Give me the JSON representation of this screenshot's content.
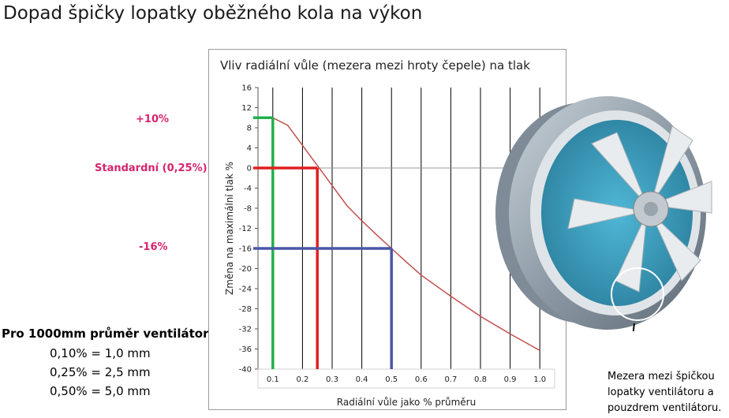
{
  "page_title": "Dopad špičky lopatky oběžného kola na výkon",
  "side_labels": {
    "plus": "+10%",
    "standard": "Standardní (0,25%)",
    "minus": "-16%"
  },
  "note": {
    "heading": "Pro 1000mm průměr ventilátor",
    "lines": [
      "0,10% = 1,0 mm",
      "0,25% = 2,5 mm",
      "0,50% = 5,0 mm"
    ]
  },
  "caption_lines": [
    "Mezera mezi špičkou",
    "lopatky ventilátoru a",
    "pouzdrem ventilátoru."
  ],
  "colors": {
    "pink": "#d6246e",
    "green": "#22b04b",
    "red": "#e02020",
    "blue": "#4a57a8",
    "curve": "#c0504d"
  },
  "chart_data": {
    "type": "line",
    "title": "Vliv radiální vůle (mezera mezi hroty čepele) na tlak",
    "xlabel": "Radiální vůle jako % průměru",
    "ylabel": "Změna na maximální tlak %",
    "xlim": [
      0.05,
      1.05
    ],
    "ylim": [
      -40,
      16
    ],
    "x_ticks": [
      "0.1",
      "0.2",
      "0.3",
      "0.4",
      "0.5",
      "0.6",
      "0.7",
      "0.8",
      "0.9",
      "1.0"
    ],
    "y_ticks": [
      "16",
      "12",
      "8",
      "4",
      "0",
      "-4",
      "-8",
      "-12",
      "-16",
      "-20",
      "-24",
      "-28",
      "-32",
      "-36",
      "-40"
    ],
    "grid": "vertical",
    "series": [
      {
        "x": [
          0.1,
          0.15,
          0.2,
          0.25,
          0.3,
          0.35,
          0.4,
          0.45,
          0.5,
          0.55,
          0.6,
          0.7,
          0.8,
          0.9,
          1.0
        ],
        "y": [
          10,
          8.5,
          4.5,
          0.5,
          -3.5,
          -7.5,
          -10.5,
          -13.3,
          -16,
          -18.7,
          -21.3,
          -25.5,
          -29.5,
          -33,
          -36.3
        ]
      }
    ],
    "markers": [
      {
        "x": 0.1,
        "y": 10,
        "color": "green"
      },
      {
        "x": 0.25,
        "y": 0,
        "color": "red"
      },
      {
        "x": 0.5,
        "y": -16,
        "color": "blue"
      }
    ]
  }
}
